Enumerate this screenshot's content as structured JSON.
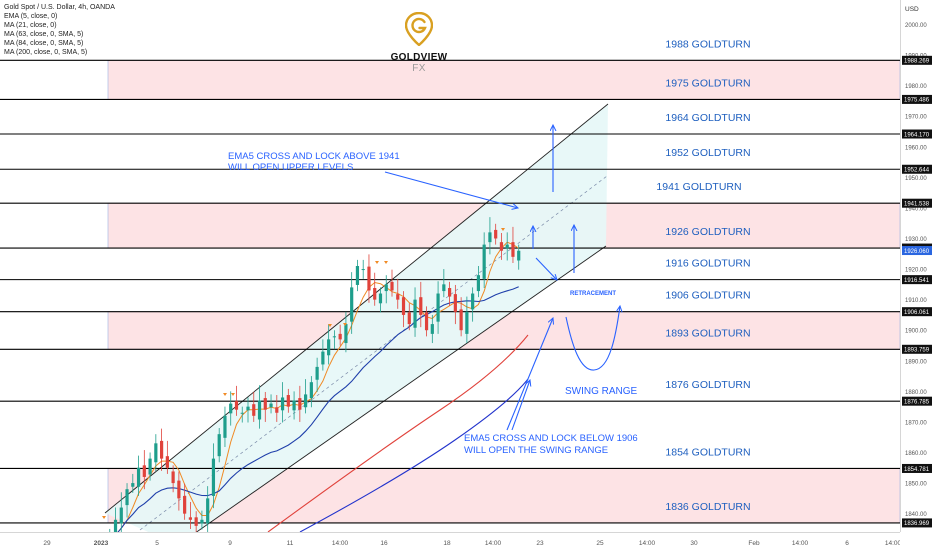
{
  "symbol_title": "Gold Spot / U.S. Dollar, 4h, OANDA",
  "indicators": [
    "EMA (5, close, 0)",
    "MA (21, close, 0)",
    "MA (63, close, 0, SMA, 5)",
    "MA (84, close, 0, SMA, 5)",
    "MA (200, close, 0, SMA, 5)"
  ],
  "brand": {
    "name": "GOLDVIEW",
    "suffix": "FX",
    "logo_color": "#d9a021"
  },
  "currency": "USD",
  "colors": {
    "level_line": "#000000",
    "level_label": "#1e5fbf",
    "zone_fill": "#fde3e5",
    "channel_fill": "#e6f7f7",
    "bull_candle": "#1e9e8c",
    "bear_candle": "#e0423b",
    "ema5": "#f08a24",
    "ma21": "#1f3faa",
    "ma63": "#e0423b",
    "ma84": "#2233cc",
    "annotation": "#2962ff",
    "current_price_tag": "#2a66e0"
  },
  "chart_data": {
    "type": "candlestick",
    "ylim": [
      1834,
      2008
    ],
    "y_ticks": [
      1840,
      1850,
      1860,
      1870,
      1880,
      1890,
      1900,
      1910,
      1920,
      1930,
      1940,
      1950,
      1960,
      1970,
      1980,
      1990,
      2000
    ],
    "x_tick_labels": [
      "29",
      "2023",
      "5",
      "9",
      "11",
      "14:00",
      "16",
      "18",
      "14:00",
      "23",
      "25",
      "14:00",
      "30",
      "Feb",
      "14:00",
      "6",
      "14:00"
    ],
    "levels": [
      {
        "value": 1988.269,
        "label": "1988 GOLDTURN"
      },
      {
        "value": 1975.486,
        "label": "1975 GOLDTURN"
      },
      {
        "value": 1964.17,
        "label": "1964 GOLDTURN"
      },
      {
        "value": 1952.644,
        "label": "1952 GOLDTURN"
      },
      {
        "value": 1941.538,
        "label": "1941 GOLDTURN"
      },
      {
        "value": 1926.869,
        "label": "1926 GOLDTURN"
      },
      {
        "value": 1916.541,
        "label": "1916 GOLDTURN"
      },
      {
        "value": 1906.061,
        "label": "1906 GOLDTURN"
      },
      {
        "value": 1893.759,
        "label": "1893 GOLDTURN"
      },
      {
        "value": 1876.785,
        "label": "1876 GOLDTURN"
      },
      {
        "value": 1854.781,
        "label": "1854 GOLDTURN"
      },
      {
        "value": 1836.969,
        "label": "1836 GOLDTURN"
      }
    ],
    "current_price": 1926.06,
    "zones": [
      {
        "from": 1975.486,
        "to": 1988.269
      },
      {
        "from": 1926.869,
        "to": 1941.538
      },
      {
        "from": 1893.759,
        "to": 1906.061
      },
      {
        "from": 1836.969,
        "to": 1854.781
      }
    ],
    "annotations": [
      "EMA5 CROSS AND LOCK ABOVE 1941",
      "WILL OPEN UPPER LEVELS",
      "RETRACEMENT",
      "SWING RANGE",
      "EMA5 CROSS AND LOCK BELOW 1906",
      "WILL OPEN THE SWING RANGE"
    ],
    "closes": [
      1829,
      1832,
      1838,
      1842,
      1848,
      1850,
      1855,
      1852,
      1858,
      1863,
      1858,
      1855,
      1850,
      1845,
      1840,
      1838,
      1836,
      1838,
      1845,
      1858,
      1866,
      1872,
      1876,
      1874,
      1873,
      1875,
      1872,
      1877,
      1874,
      1876,
      1873,
      1878,
      1875,
      1877,
      1874,
      1879,
      1883,
      1888,
      1893,
      1897,
      1898,
      1897,
      1902,
      1914,
      1921,
      1920,
      1913,
      1910,
      1912,
      1915,
      1913,
      1910,
      1905,
      1902,
      1910,
      1905,
      1900,
      1902,
      1912,
      1915,
      1911,
      1906,
      1900,
      1906,
      1912,
      1918,
      1928,
      1932,
      1930,
      1926,
      1928,
      1924,
      1926
    ]
  }
}
